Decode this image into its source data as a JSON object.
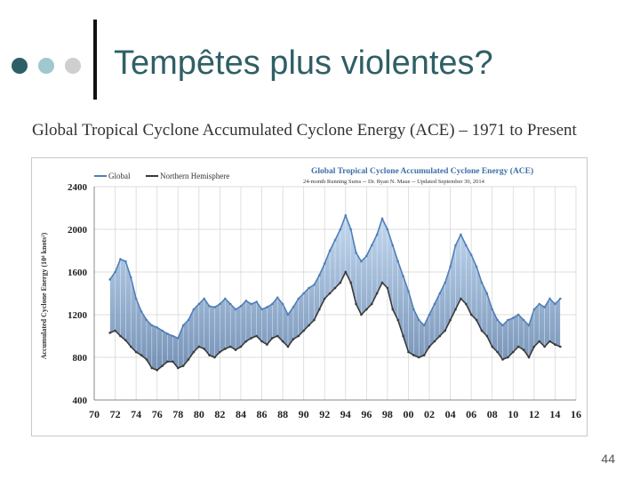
{
  "slide": {
    "title": "Tempêtes plus violentes?",
    "subtitle": "Global Tropical Cyclone Accumulated Cyclone Energy (ACE) – 1971 to Present",
    "page_number": "44",
    "bullet_colors": [
      "#2f5f66",
      "#9fc8cf",
      "#cfcfcf"
    ]
  },
  "chart_data": {
    "type": "line",
    "title": "Global Tropical Cyclone Accumulated Cyclone Energy (ACE)",
    "subtitle": "24-month Running Sums -- Dr. Ryan N. Maue -- Updated September 30, 2014",
    "ylabel": "Accumulated Cyclone Energy (10⁴ knots²)",
    "xlabel": "",
    "xlim": [
      1970,
      2016
    ],
    "ylim": [
      400,
      2400
    ],
    "yticks": [
      400,
      800,
      1200,
      1600,
      2000,
      2400
    ],
    "xtick_labels": [
      "70",
      "72",
      "74",
      "76",
      "78",
      "80",
      "82",
      "84",
      "86",
      "88",
      "90",
      "92",
      "94",
      "96",
      "98",
      "00",
      "02",
      "04",
      "06",
      "08",
      "10",
      "12",
      "14",
      "16"
    ],
    "legend": [
      "Global",
      "Northern Hemisphere"
    ],
    "grid": true,
    "series": [
      {
        "name": "Global",
        "color": "#4f7fb8",
        "x": [
          1971.5,
          1972,
          1972.5,
          1973,
          1973.5,
          1974,
          1974.5,
          1975,
          1975.5,
          1976,
          1976.5,
          1977,
          1977.5,
          1978,
          1978.5,
          1979,
          1979.5,
          1980,
          1980.5,
          1981,
          1981.5,
          1982,
          1982.5,
          1983,
          1983.5,
          1984,
          1984.5,
          1985,
          1985.5,
          1986,
          1986.5,
          1987,
          1987.5,
          1988,
          1988.5,
          1989,
          1989.5,
          1990,
          1990.5,
          1991,
          1991.5,
          1992,
          1992.5,
          1993,
          1993.5,
          1994,
          1994.5,
          1995,
          1995.5,
          1996,
          1996.5,
          1997,
          1997.5,
          1998,
          1998.5,
          1999,
          1999.5,
          2000,
          2000.5,
          2001,
          2001.5,
          2002,
          2002.5,
          2003,
          2003.5,
          2004,
          2004.5,
          2005,
          2005.5,
          2006,
          2006.5,
          2007,
          2007.5,
          2008,
          2008.5,
          2009,
          2009.5,
          2010,
          2010.5,
          2011,
          2011.5,
          2012,
          2012.5,
          2013,
          2013.5,
          2014,
          2014.5
        ],
        "values": [
          1530,
          1600,
          1720,
          1700,
          1550,
          1350,
          1230,
          1150,
          1100,
          1080,
          1050,
          1020,
          1000,
          980,
          1100,
          1150,
          1250,
          1300,
          1350,
          1280,
          1270,
          1300,
          1350,
          1300,
          1250,
          1280,
          1330,
          1300,
          1320,
          1250,
          1270,
          1300,
          1360,
          1300,
          1200,
          1270,
          1350,
          1400,
          1450,
          1480,
          1570,
          1680,
          1800,
          1900,
          2000,
          2130,
          2000,
          1780,
          1700,
          1750,
          1850,
          1950,
          2100,
          2000,
          1850,
          1700,
          1560,
          1420,
          1250,
          1150,
          1100,
          1200,
          1300,
          1400,
          1500,
          1650,
          1850,
          1950,
          1850,
          1760,
          1650,
          1500,
          1400,
          1250,
          1150,
          1100,
          1150,
          1170,
          1200,
          1150,
          1100,
          1250,
          1300,
          1270,
          1350,
          1300,
          1350
        ]
      },
      {
        "name": "Northern Hemisphere",
        "color": "#3a3a3a",
        "x": [
          1971.5,
          1972,
          1972.5,
          1973,
          1973.5,
          1974,
          1974.5,
          1975,
          1975.5,
          1976,
          1976.5,
          1977,
          1977.5,
          1978,
          1978.5,
          1979,
          1979.5,
          1980,
          1980.5,
          1981,
          1981.5,
          1982,
          1982.5,
          1983,
          1983.5,
          1984,
          1984.5,
          1985,
          1985.5,
          1986,
          1986.5,
          1987,
          1987.5,
          1988,
          1988.5,
          1989,
          1989.5,
          1990,
          1990.5,
          1991,
          1991.5,
          1992,
          1992.5,
          1993,
          1993.5,
          1994,
          1994.5,
          1995,
          1995.5,
          1996,
          1996.5,
          1997,
          1997.5,
          1998,
          1998.5,
          1999,
          1999.5,
          2000,
          2000.5,
          2001,
          2001.5,
          2002,
          2002.5,
          2003,
          2003.5,
          2004,
          2004.5,
          2005,
          2005.5,
          2006,
          2006.5,
          2007,
          2007.5,
          2008,
          2008.5,
          2009,
          2009.5,
          2010,
          2010.5,
          2011,
          2011.5,
          2012,
          2012.5,
          2013,
          2013.5,
          2014,
          2014.5
        ],
        "values": [
          1030,
          1050,
          1000,
          960,
          900,
          850,
          820,
          780,
          700,
          680,
          720,
          760,
          760,
          700,
          720,
          780,
          850,
          900,
          880,
          820,
          800,
          850,
          880,
          900,
          870,
          900,
          950,
          980,
          1000,
          950,
          920,
          980,
          1000,
          950,
          900,
          970,
          1000,
          1050,
          1100,
          1150,
          1250,
          1350,
          1400,
          1450,
          1500,
          1600,
          1500,
          1300,
          1200,
          1250,
          1300,
          1400,
          1500,
          1450,
          1250,
          1150,
          1000,
          850,
          820,
          800,
          820,
          900,
          950,
          1000,
          1050,
          1150,
          1250,
          1350,
          1300,
          1200,
          1150,
          1050,
          1000,
          900,
          850,
          780,
          800,
          850,
          900,
          870,
          800,
          900,
          950,
          900,
          950,
          920,
          900
        ]
      }
    ]
  }
}
